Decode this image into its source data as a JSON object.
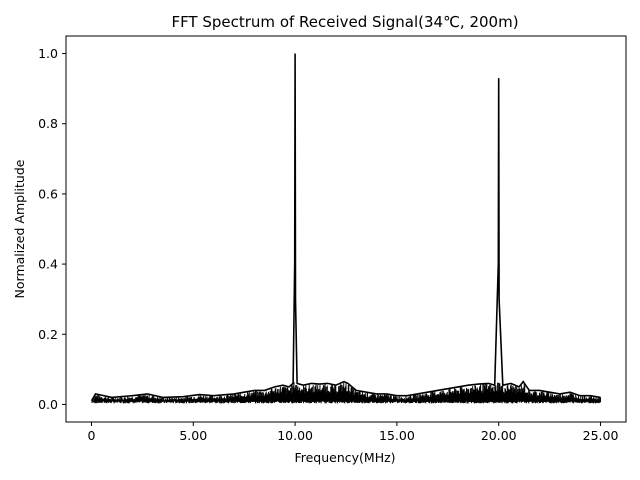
{
  "chart_data": {
    "type": "line",
    "title": "FFT Spectrum of Received Signal(34℃, 200m)",
    "xlabel": "Frequency(MHz)",
    "ylabel": "Normalized Amplitude",
    "xlim": [
      -1.25,
      26.25
    ],
    "ylim": [
      -0.05,
      1.05
    ],
    "x_ticks": [
      0,
      5,
      10,
      15,
      20,
      25
    ],
    "x_tick_labels": [
      "0",
      "5.00",
      "10.00",
      "15.00",
      "20.00",
      "25.00"
    ],
    "y_ticks": [
      0.0,
      0.2,
      0.4,
      0.6,
      0.8,
      1.0
    ],
    "y_tick_labels": [
      "0.0",
      "0.2",
      "0.4",
      "0.6",
      "0.8",
      "1.0"
    ],
    "grid": false,
    "line_color": "#000000",
    "series": [
      {
        "x": [
          0.0,
          0.2,
          1.0,
          2.0,
          2.75,
          3.5,
          4.5,
          5.3,
          6.0,
          7.0,
          7.5,
          8.0,
          8.5,
          9.0,
          9.4,
          9.7,
          9.9,
          9.98,
          10.0,
          10.02,
          10.1,
          10.4,
          10.8,
          11.2,
          11.6,
          12.0,
          12.4,
          12.6,
          13.0,
          13.5,
          14.0,
          14.5,
          15.0,
          15.5,
          16.0,
          16.5,
          17.0,
          17.5,
          18.0,
          18.5,
          19.0,
          19.5,
          19.8,
          19.98,
          20.0,
          20.02,
          20.2,
          20.6,
          21.0,
          21.2,
          21.5,
          22.0,
          22.5,
          23.0,
          23.5,
          24.0,
          24.5,
          25.0
        ],
        "y": [
          0.01,
          0.03,
          0.02,
          0.025,
          0.03,
          0.02,
          0.022,
          0.028,
          0.025,
          0.03,
          0.035,
          0.04,
          0.04,
          0.05,
          0.055,
          0.05,
          0.06,
          0.4,
          1.0,
          0.3,
          0.06,
          0.055,
          0.06,
          0.058,
          0.06,
          0.055,
          0.065,
          0.06,
          0.04,
          0.035,
          0.03,
          0.03,
          0.025,
          0.025,
          0.03,
          0.035,
          0.04,
          0.045,
          0.05,
          0.055,
          0.058,
          0.06,
          0.055,
          0.4,
          0.93,
          0.3,
          0.055,
          0.06,
          0.05,
          0.065,
          0.04,
          0.04,
          0.035,
          0.03,
          0.035,
          0.025,
          0.025,
          0.02
        ]
      }
    ]
  }
}
